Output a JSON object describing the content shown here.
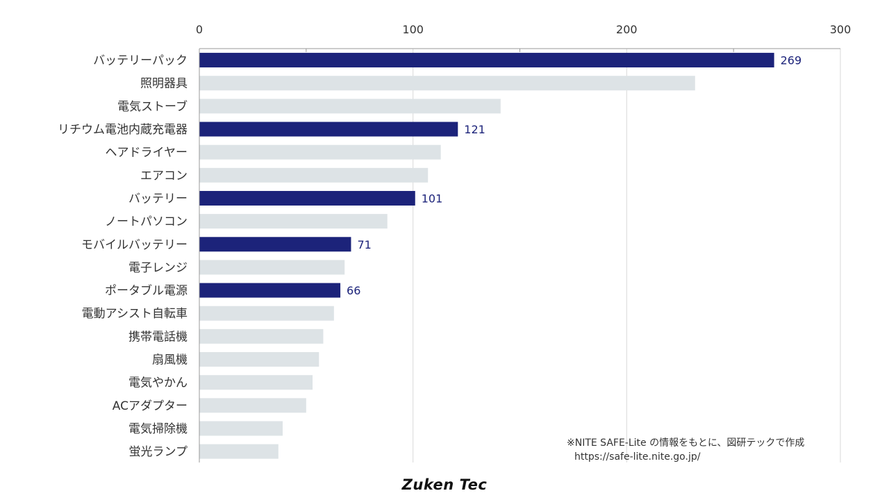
{
  "chart_data": {
    "type": "bar",
    "orientation": "horizontal",
    "xlim": [
      0,
      300
    ],
    "x_ticks": [
      0,
      100,
      200,
      300
    ],
    "x_axis_position": "top",
    "grid": true,
    "categories": [
      "バッテリーパック",
      "照明器具",
      "電気ストーブ",
      "リチウム電池内蔵充電器",
      "ヘアドライヤー",
      "エアコン",
      "バッテリー",
      "ノートパソコン",
      "モバイルバッテリー",
      "電子レンジ",
      "ポータブル電源",
      "電動アシスト自転車",
      "携帯電話機",
      "扇風機",
      "電気やかん",
      "ACアダプター",
      "電気掃除機",
      "蛍光ランプ"
    ],
    "values": [
      269,
      232,
      141,
      121,
      113,
      107,
      101,
      88,
      71,
      68,
      66,
      63,
      58,
      56,
      53,
      50,
      39,
      37
    ],
    "highlighted": [
      true,
      false,
      false,
      true,
      false,
      false,
      true,
      false,
      true,
      false,
      true,
      false,
      false,
      false,
      false,
      false,
      false,
      false
    ],
    "data_labels": [
      "269",
      "",
      "",
      "121",
      "",
      "",
      "101",
      "",
      "71",
      "",
      "66",
      "",
      "",
      "",
      "",
      "",
      "",
      ""
    ],
    "colors": {
      "highlight": "#1c237a",
      "normal": "#dde3e6",
      "label": "#1c237a",
      "grid": "#d9d9d9",
      "axis": "#999999"
    }
  },
  "footnote": {
    "line1": "※NITE SAFE-Lite の情報をもとに、図研テックで作成",
    "line2": "https://safe-lite.nite.go.jp/"
  },
  "brand": "Zuken Tec"
}
